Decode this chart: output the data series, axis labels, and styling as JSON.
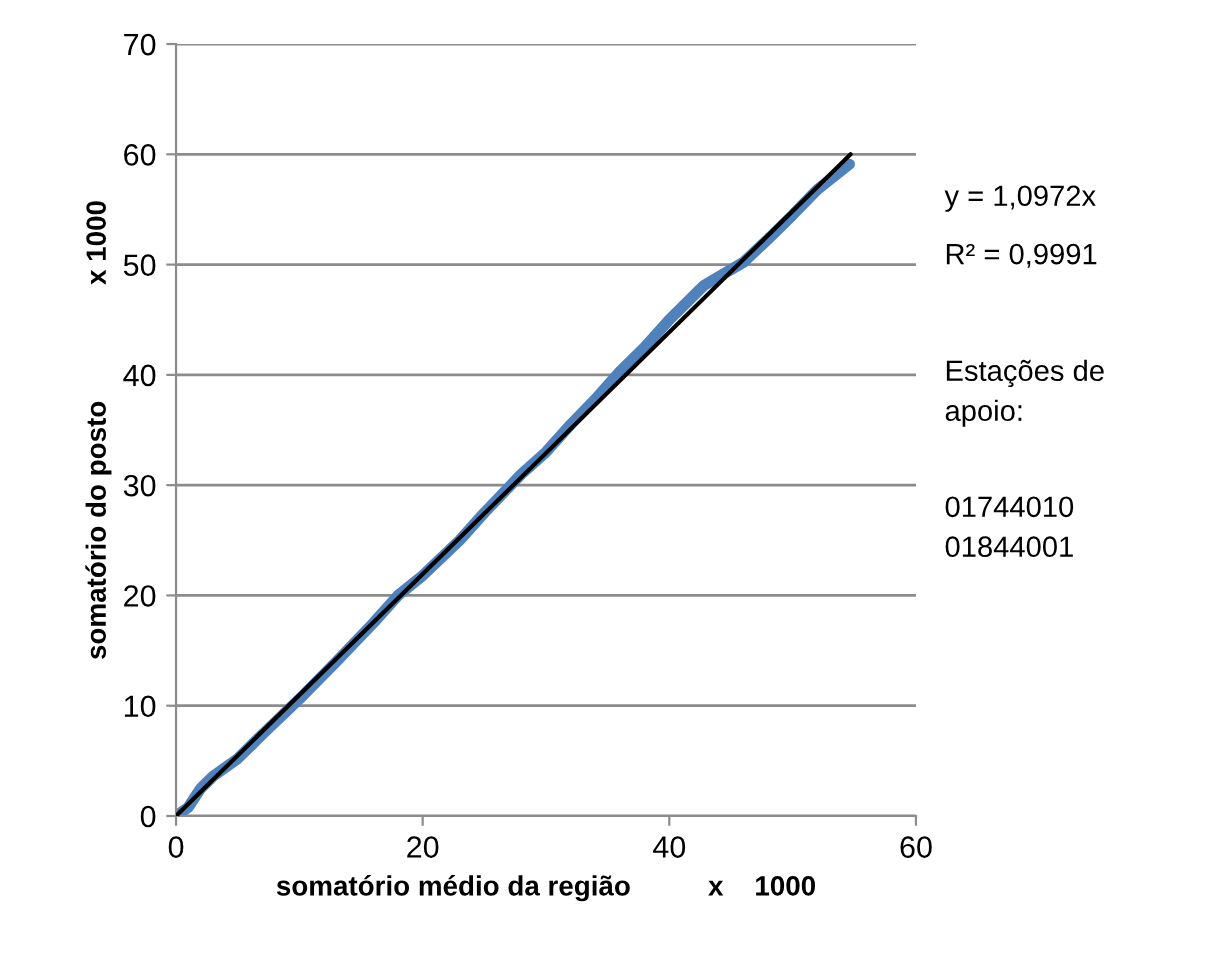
{
  "chart_data": {
    "type": "line",
    "xlabel": "somatório médio da região          x    1000",
    "ylabel": "somatório do posto               x 1000",
    "xlim": [
      0,
      60
    ],
    "ylim": [
      0,
      70
    ],
    "xticks": [
      0,
      20,
      40,
      60
    ],
    "yticks": [
      0,
      10,
      20,
      30,
      40,
      50,
      60,
      70
    ],
    "grid": "y",
    "marker": "none",
    "series": [
      {
        "color": "#4f81bd",
        "x": [
          0,
          1,
          2,
          3,
          5,
          7,
          10,
          13,
          16,
          18,
          20,
          23,
          25,
          28,
          30,
          32,
          34,
          36,
          38,
          40,
          42.8,
          44,
          46,
          48,
          50,
          52,
          54.6
        ],
        "values": [
          0,
          0.8,
          2.5,
          3.6,
          5.2,
          7.4,
          10.6,
          14,
          17.5,
          20,
          21.8,
          25,
          27.5,
          31,
          33,
          35.5,
          37.8,
          40.3,
          42.5,
          45,
          48.1,
          48.9,
          50.2,
          52.3,
          54.5,
          56.8,
          59.1
        ]
      },
      {
        "color": "#000000",
        "x": [
          0,
          54.7
        ],
        "values": [
          0,
          60
        ]
      }
    ],
    "annotations": [
      "y = 1,0972x",
      "R² = 0,9991",
      "Estações de\napoio:",
      "01744010\n01844001"
    ]
  }
}
